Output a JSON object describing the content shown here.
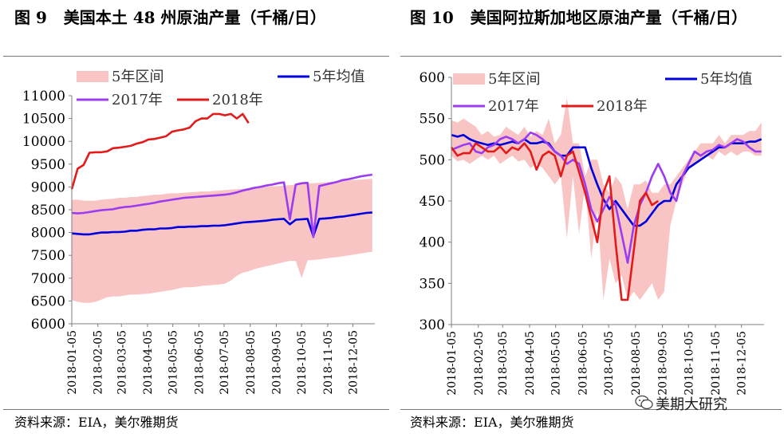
{
  "left": {
    "title": "图 9   美国本土 48 州原油产量（千桶/日）",
    "source": "资料来源：EIA，美尔雅期货"
  },
  "right": {
    "title": "图 10   美国阿拉斯加地区原油产量（千桶/日）",
    "source": "资料来源：EIA，美尔雅期货"
  },
  "watermark": {
    "text": "美期大研究",
    "icon": "wechat-icon"
  },
  "colors": {
    "band": "#f9c4c4",
    "avg": "#0000dd",
    "y2017": "#9b3cf0",
    "y2018": "#e31a1a"
  },
  "chart_data": [
    {
      "type": "line",
      "legend": [
        "5年区间",
        "5年均值",
        "2017年",
        "2018年"
      ],
      "legend_placement": "top",
      "ylim": [
        6000,
        11000
      ],
      "yticks": [
        "6000",
        "6500",
        "7000",
        "7500",
        "8000",
        "8500",
        "9000",
        "9500",
        "10000",
        "10500",
        "11000"
      ],
      "xticks": [
        "2018-01-05",
        "2018-02-05",
        "2018-03-05",
        "2018-04-05",
        "2018-05-05",
        "2018-06-05",
        "2018-07-05",
        "2018-08-05",
        "2018-09-05",
        "2018-10-05",
        "2018-11-05",
        "2018-12-05"
      ],
      "weeks": [
        "2018-01-05",
        "2018-01-12",
        "2018-01-19",
        "2018-01-26",
        "2018-02-02",
        "2018-02-09",
        "2018-02-16",
        "2018-02-23",
        "2018-03-02",
        "2018-03-09",
        "2018-03-16",
        "2018-03-23",
        "2018-03-30",
        "2018-04-06",
        "2018-04-13",
        "2018-04-20",
        "2018-04-27",
        "2018-05-04",
        "2018-05-11",
        "2018-05-18",
        "2018-05-25",
        "2018-06-01",
        "2018-06-08",
        "2018-06-15",
        "2018-06-22",
        "2018-06-29",
        "2018-07-06",
        "2018-07-13",
        "2018-07-20",
        "2018-07-27",
        "2018-08-03",
        "2018-08-10",
        "2018-08-17",
        "2018-08-24",
        "2018-08-31",
        "2018-09-07",
        "2018-09-14",
        "2018-09-21",
        "2018-09-28",
        "2018-10-05",
        "2018-10-12",
        "2018-10-19",
        "2018-10-26",
        "2018-11-02",
        "2018-11-09",
        "2018-11-16",
        "2018-11-23",
        "2018-11-30",
        "2018-12-07",
        "2018-12-14",
        "2018-12-21",
        "2018-12-28"
      ],
      "band_upper": [
        8720,
        8720,
        8700,
        8700,
        8700,
        8720,
        8730,
        8740,
        8760,
        8760,
        8780,
        8780,
        8800,
        8810,
        8830,
        8830,
        8850,
        8860,
        8860,
        8870,
        8880,
        8890,
        8900,
        8900,
        8910,
        8920,
        8930,
        8940,
        8950,
        8960,
        8970,
        8980,
        8990,
        9000,
        9010,
        9020,
        9030,
        9040,
        9050,
        9060,
        9070,
        9080,
        9090,
        9100,
        9110,
        9120,
        9130,
        9140,
        9150,
        9160,
        9170,
        9180
      ],
      "band_lower": [
        6520,
        6480,
        6460,
        6460,
        6480,
        6530,
        6580,
        6600,
        6600,
        6620,
        6640,
        6640,
        6650,
        6660,
        6680,
        6700,
        6720,
        6740,
        6770,
        6800,
        6800,
        6810,
        6830,
        6840,
        6850,
        6860,
        6880,
        6950,
        7050,
        7120,
        7150,
        7200,
        7230,
        7260,
        7290,
        7320,
        7350,
        7380,
        7380,
        7000,
        7390,
        7400,
        7410,
        7430,
        7450,
        7460,
        7480,
        7500,
        7520,
        7540,
        7560,
        7580
      ],
      "series": [
        {
          "name": "5年均值",
          "values": [
            7980,
            7970,
            7960,
            7960,
            7980,
            8000,
            8000,
            8010,
            8010,
            8020,
            8040,
            8040,
            8060,
            8070,
            8070,
            8090,
            8090,
            8100,
            8120,
            8120,
            8130,
            8130,
            8140,
            8140,
            8150,
            8150,
            8160,
            8180,
            8200,
            8220,
            8230,
            8240,
            8250,
            8260,
            8280,
            8290,
            8300,
            8180,
            8280,
            8290,
            8300,
            7920,
            8300,
            8310,
            8320,
            8340,
            8350,
            8370,
            8390,
            8410,
            8430,
            8440
          ]
        },
        {
          "name": "2017年",
          "values": [
            8430,
            8420,
            8430,
            8450,
            8470,
            8490,
            8500,
            8510,
            8540,
            8560,
            8570,
            8590,
            8610,
            8630,
            8650,
            8680,
            8700,
            8720,
            8740,
            8760,
            8770,
            8780,
            8790,
            8800,
            8810,
            8820,
            8830,
            8850,
            8880,
            8920,
            8950,
            8980,
            9000,
            9030,
            9050,
            9080,
            9100,
            8290,
            9050,
            9080,
            9090,
            7900,
            9020,
            9050,
            9080,
            9110,
            9150,
            9170,
            9200,
            9230,
            9250,
            9270
          ]
        },
        {
          "name": "2018年",
          "values": [
            8950,
            9400,
            9480,
            9750,
            9760,
            9760,
            9780,
            9850,
            9860,
            9880,
            9900,
            9950,
            9980,
            10040,
            10050,
            10080,
            10110,
            10210,
            10240,
            10260,
            10300,
            10440,
            10500,
            10500,
            10600,
            10600,
            10570,
            10600,
            10500,
            10600,
            10400
          ]
        }
      ]
    },
    {
      "type": "line",
      "legend": [
        "5年区间",
        "5年均值",
        "2017年",
        "2018年"
      ],
      "legend_placement": "top",
      "ylim": [
        300,
        600
      ],
      "yticks": [
        "300",
        "350",
        "400",
        "450",
        "500",
        "550",
        "600"
      ],
      "xticks": [
        "2018-01-05",
        "2018-02-05",
        "2018-03-05",
        "2018-04-05",
        "2018-05-05",
        "2018-06-05",
        "2018-07-05",
        "2018-08-05",
        "2018-09-05",
        "2018-10-05",
        "2018-11-05",
        "2018-12-05"
      ],
      "weeks": [
        "2018-01-05",
        "2018-01-12",
        "2018-01-19",
        "2018-01-26",
        "2018-02-02",
        "2018-02-09",
        "2018-02-16",
        "2018-02-23",
        "2018-03-02",
        "2018-03-09",
        "2018-03-16",
        "2018-03-23",
        "2018-03-30",
        "2018-04-06",
        "2018-04-13",
        "2018-04-20",
        "2018-04-27",
        "2018-05-04",
        "2018-05-11",
        "2018-05-18",
        "2018-05-25",
        "2018-06-01",
        "2018-06-08",
        "2018-06-15",
        "2018-06-22",
        "2018-06-29",
        "2018-07-06",
        "2018-07-13",
        "2018-07-20",
        "2018-07-27",
        "2018-08-03",
        "2018-08-10",
        "2018-08-17",
        "2018-08-24",
        "2018-08-31",
        "2018-09-07",
        "2018-09-14",
        "2018-09-21",
        "2018-09-28",
        "2018-10-05",
        "2018-10-12",
        "2018-10-19",
        "2018-10-26",
        "2018-11-02",
        "2018-11-09",
        "2018-11-16",
        "2018-11-23",
        "2018-11-30",
        "2018-12-07",
        "2018-12-14",
        "2018-12-21",
        "2018-12-28"
      ],
      "band_upper": [
        548,
        545,
        550,
        545,
        540,
        530,
        535,
        528,
        530,
        540,
        535,
        530,
        540,
        528,
        535,
        530,
        550,
        520,
        530,
        575,
        520,
        520,
        480,
        500,
        500,
        470,
        460,
        480,
        470,
        440,
        470,
        470,
        475,
        460,
        460,
        470,
        470,
        480,
        490,
        500,
        510,
        520,
        520,
        520,
        530,
        520,
        530,
        530,
        530,
        535,
        535,
        545
      ],
      "band_lower": [
        505,
        498,
        500,
        495,
        500,
        505,
        500,
        505,
        495,
        500,
        505,
        498,
        500,
        490,
        495,
        490,
        480,
        470,
        480,
        405,
        480,
        410,
        470,
        380,
        440,
        330,
        380,
        350,
        360,
        330,
        340,
        330,
        340,
        350,
        330,
        340,
        420,
        450,
        470,
        490,
        495,
        500,
        505,
        500,
        510,
        505,
        510,
        505,
        510,
        510,
        505,
        505
      ],
      "series": [
        {
          "name": "5年均值",
          "values": [
            530,
            528,
            530,
            525,
            522,
            520,
            518,
            520,
            518,
            520,
            522,
            520,
            525,
            520,
            520,
            522,
            520,
            510,
            505,
            505,
            515,
            515,
            515,
            490,
            470,
            452,
            440,
            450,
            440,
            430,
            420,
            420,
            425,
            435,
            445,
            450,
            450,
            470,
            480,
            490,
            495,
            500,
            505,
            510,
            515,
            515,
            520,
            520,
            520,
            522,
            522,
            525
          ]
        },
        {
          "name": "2017年",
          "values": [
            512,
            515,
            518,
            520,
            510,
            508,
            515,
            518,
            525,
            528,
            525,
            520,
            525,
            533,
            530,
            525,
            518,
            510,
            505,
            495,
            500,
            495,
            470,
            440,
            425,
            440,
            455,
            445,
            410,
            375,
            420,
            445,
            460,
            480,
            495,
            480,
            460,
            450,
            480,
            495,
            510,
            505,
            510,
            512,
            518,
            515,
            520,
            525,
            522,
            515,
            510,
            510
          ]
        },
        {
          "name": "2018年",
          "values": [
            515,
            505,
            508,
            508,
            520,
            515,
            510,
            510,
            516,
            508,
            515,
            512,
            520,
            510,
            488,
            505,
            510,
            505,
            480,
            505,
            510,
            485,
            460,
            430,
            400,
            460,
            480,
            400,
            330,
            330,
            390,
            450,
            460,
            445,
            450
          ]
        }
      ]
    }
  ]
}
